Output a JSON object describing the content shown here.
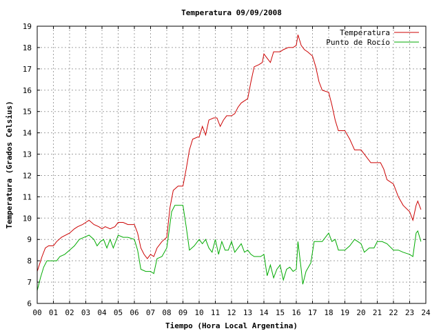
{
  "chart_data": {
    "type": "line",
    "title": "Temperatura 09/09/2008",
    "xlabel": "Tiempo (Hora Local Argentina)",
    "ylabel": "Temperatura (Grados Celsius)",
    "xlim": [
      0,
      24
    ],
    "ylim": [
      6,
      19
    ],
    "xticks": [
      "00",
      "01",
      "02",
      "03",
      "04",
      "05",
      "06",
      "07",
      "08",
      "09",
      "10",
      "11",
      "12",
      "13",
      "14",
      "15",
      "16",
      "17",
      "18",
      "19",
      "20",
      "21",
      "22",
      "23",
      "24"
    ],
    "yticks": [
      "6",
      "7",
      "8",
      "9",
      "10",
      "11",
      "12",
      "13",
      "14",
      "15",
      "16",
      "17",
      "18",
      "19"
    ],
    "grid": true,
    "legend_position": "top-right",
    "series": [
      {
        "name": "Temperatura",
        "color": "#cc0000",
        "points": [
          [
            0.0,
            7.5
          ],
          [
            0.3,
            8.2
          ],
          [
            0.5,
            8.6
          ],
          [
            0.7,
            8.7
          ],
          [
            1.0,
            8.7
          ],
          [
            1.2,
            8.9
          ],
          [
            1.5,
            9.1
          ],
          [
            2.0,
            9.3
          ],
          [
            2.3,
            9.5
          ],
          [
            2.5,
            9.6
          ],
          [
            2.8,
            9.7
          ],
          [
            3.0,
            9.8
          ],
          [
            3.2,
            9.9
          ],
          [
            3.5,
            9.7
          ],
          [
            3.8,
            9.6
          ],
          [
            4.0,
            9.5
          ],
          [
            4.2,
            9.6
          ],
          [
            4.5,
            9.5
          ],
          [
            4.8,
            9.6
          ],
          [
            5.0,
            9.8
          ],
          [
            5.3,
            9.8
          ],
          [
            5.6,
            9.7
          ],
          [
            6.0,
            9.7
          ],
          [
            6.2,
            9.3
          ],
          [
            6.4,
            8.6
          ],
          [
            6.6,
            8.3
          ],
          [
            6.8,
            8.1
          ],
          [
            7.0,
            8.3
          ],
          [
            7.2,
            8.2
          ],
          [
            7.4,
            8.6
          ],
          [
            7.7,
            8.9
          ],
          [
            8.0,
            9.1
          ],
          [
            8.2,
            10.5
          ],
          [
            8.4,
            11.3
          ],
          [
            8.7,
            11.5
          ],
          [
            9.0,
            11.5
          ],
          [
            9.2,
            12.3
          ],
          [
            9.4,
            13.2
          ],
          [
            9.6,
            13.7
          ],
          [
            9.9,
            13.8
          ],
          [
            10.0,
            13.8
          ],
          [
            10.2,
            14.3
          ],
          [
            10.4,
            13.9
          ],
          [
            10.6,
            14.6
          ],
          [
            10.9,
            14.7
          ],
          [
            11.1,
            14.7
          ],
          [
            11.3,
            14.3
          ],
          [
            11.5,
            14.6
          ],
          [
            11.7,
            14.8
          ],
          [
            12.0,
            14.8
          ],
          [
            12.2,
            14.9
          ],
          [
            12.4,
            15.2
          ],
          [
            12.6,
            15.4
          ],
          [
            13.0,
            15.6
          ],
          [
            13.2,
            16.4
          ],
          [
            13.4,
            17.1
          ],
          [
            13.7,
            17.2
          ],
          [
            13.9,
            17.3
          ],
          [
            14.0,
            17.7
          ],
          [
            14.2,
            17.5
          ],
          [
            14.4,
            17.3
          ],
          [
            14.6,
            17.8
          ],
          [
            15.0,
            17.8
          ],
          [
            15.2,
            17.9
          ],
          [
            15.5,
            18.0
          ],
          [
            15.8,
            18.0
          ],
          [
            16.0,
            18.1
          ],
          [
            16.1,
            18.6
          ],
          [
            16.3,
            18.1
          ],
          [
            16.5,
            17.9
          ],
          [
            16.7,
            17.8
          ],
          [
            17.0,
            17.6
          ],
          [
            17.2,
            17.1
          ],
          [
            17.4,
            16.4
          ],
          [
            17.6,
            16.0
          ],
          [
            18.0,
            15.9
          ],
          [
            18.2,
            15.3
          ],
          [
            18.4,
            14.6
          ],
          [
            18.6,
            14.1
          ],
          [
            19.0,
            14.1
          ],
          [
            19.3,
            13.7
          ],
          [
            19.6,
            13.2
          ],
          [
            20.0,
            13.2
          ],
          [
            20.3,
            12.9
          ],
          [
            20.6,
            12.6
          ],
          [
            21.0,
            12.6
          ],
          [
            21.2,
            12.6
          ],
          [
            21.4,
            12.3
          ],
          [
            21.6,
            11.8
          ],
          [
            22.0,
            11.6
          ],
          [
            22.3,
            11.0
          ],
          [
            22.6,
            10.6
          ],
          [
            23.0,
            10.3
          ],
          [
            23.2,
            9.9
          ],
          [
            23.4,
            10.6
          ],
          [
            23.5,
            10.8
          ],
          [
            23.7,
            10.4
          ]
        ]
      },
      {
        "name": "Punto de Rocío",
        "color": "#00aa00",
        "points": [
          [
            0.0,
            6.6
          ],
          [
            0.2,
            7.2
          ],
          [
            0.4,
            7.7
          ],
          [
            0.6,
            8.0
          ],
          [
            1.0,
            8.0
          ],
          [
            1.2,
            8.0
          ],
          [
            1.4,
            8.2
          ],
          [
            1.7,
            8.3
          ],
          [
            2.0,
            8.5
          ],
          [
            2.3,
            8.7
          ],
          [
            2.6,
            9.0
          ],
          [
            2.9,
            9.1
          ],
          [
            3.2,
            9.2
          ],
          [
            3.5,
            9.0
          ],
          [
            3.7,
            8.7
          ],
          [
            3.9,
            8.9
          ],
          [
            4.1,
            9.0
          ],
          [
            4.3,
            8.6
          ],
          [
            4.5,
            9.0
          ],
          [
            4.7,
            8.6
          ],
          [
            5.0,
            9.2
          ],
          [
            5.3,
            9.1
          ],
          [
            5.6,
            9.1
          ],
          [
            6.0,
            9.0
          ],
          [
            6.2,
            8.5
          ],
          [
            6.4,
            7.6
          ],
          [
            6.7,
            7.5
          ],
          [
            7.0,
            7.5
          ],
          [
            7.2,
            7.4
          ],
          [
            7.4,
            8.1
          ],
          [
            7.7,
            8.2
          ],
          [
            8.0,
            8.6
          ],
          [
            8.3,
            10.3
          ],
          [
            8.5,
            10.6
          ],
          [
            8.8,
            10.6
          ],
          [
            9.0,
            10.6
          ],
          [
            9.2,
            9.6
          ],
          [
            9.4,
            8.5
          ],
          [
            9.7,
            8.7
          ],
          [
            10.0,
            9.0
          ],
          [
            10.2,
            8.8
          ],
          [
            10.4,
            9.0
          ],
          [
            10.6,
            8.6
          ],
          [
            10.8,
            8.4
          ],
          [
            11.0,
            9.0
          ],
          [
            11.2,
            8.3
          ],
          [
            11.4,
            8.9
          ],
          [
            11.6,
            8.5
          ],
          [
            11.8,
            8.5
          ],
          [
            12.0,
            8.9
          ],
          [
            12.2,
            8.4
          ],
          [
            12.4,
            8.6
          ],
          [
            12.6,
            8.8
          ],
          [
            12.8,
            8.4
          ],
          [
            13.0,
            8.5
          ],
          [
            13.2,
            8.3
          ],
          [
            13.4,
            8.2
          ],
          [
            13.8,
            8.2
          ],
          [
            14.0,
            8.3
          ],
          [
            14.2,
            7.3
          ],
          [
            14.4,
            7.8
          ],
          [
            14.6,
            7.2
          ],
          [
            14.8,
            7.6
          ],
          [
            15.0,
            7.8
          ],
          [
            15.2,
            7.1
          ],
          [
            15.4,
            7.6
          ],
          [
            15.6,
            7.7
          ],
          [
            15.8,
            7.5
          ],
          [
            16.0,
            7.6
          ],
          [
            16.1,
            8.9
          ],
          [
            16.3,
            7.6
          ],
          [
            16.4,
            6.9
          ],
          [
            16.6,
            7.5
          ],
          [
            16.9,
            7.9
          ],
          [
            17.1,
            8.9
          ],
          [
            17.3,
            8.9
          ],
          [
            17.6,
            8.9
          ],
          [
            17.8,
            9.1
          ],
          [
            18.0,
            9.3
          ],
          [
            18.2,
            8.9
          ],
          [
            18.4,
            9.0
          ],
          [
            18.6,
            8.5
          ],
          [
            19.0,
            8.5
          ],
          [
            19.3,
            8.7
          ],
          [
            19.6,
            9.0
          ],
          [
            20.0,
            8.8
          ],
          [
            20.2,
            8.4
          ],
          [
            20.5,
            8.6
          ],
          [
            20.8,
            8.6
          ],
          [
            21.0,
            8.9
          ],
          [
            21.3,
            8.9
          ],
          [
            21.6,
            8.8
          ],
          [
            22.0,
            8.5
          ],
          [
            22.3,
            8.5
          ],
          [
            22.6,
            8.4
          ],
          [
            23.0,
            8.3
          ],
          [
            23.2,
            8.2
          ],
          [
            23.4,
            9.3
          ],
          [
            23.5,
            9.4
          ],
          [
            23.7,
            8.9
          ]
        ]
      }
    ]
  }
}
